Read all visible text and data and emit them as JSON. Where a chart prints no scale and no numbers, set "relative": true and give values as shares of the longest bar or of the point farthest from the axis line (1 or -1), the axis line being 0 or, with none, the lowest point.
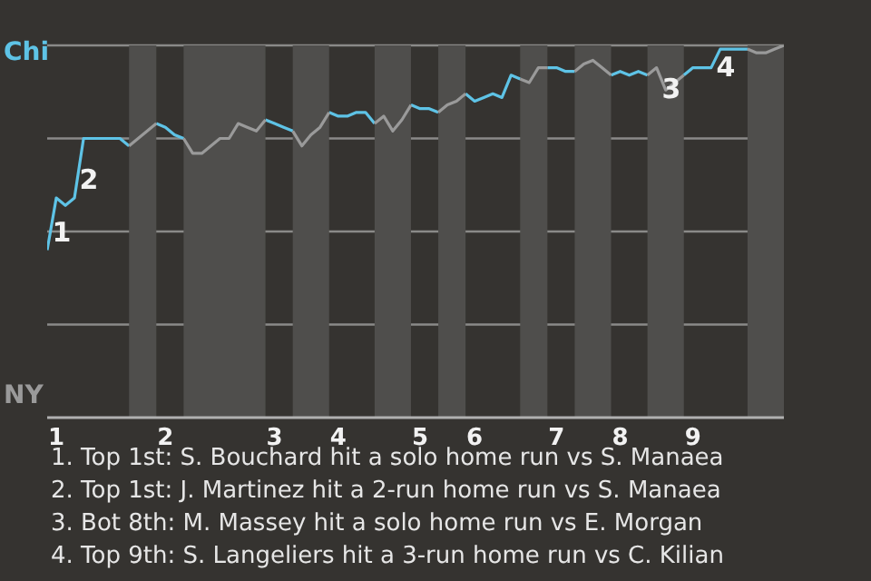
{
  "chart_data": {
    "type": "line",
    "relative": true,
    "categories": [
      null,
      "1",
      null,
      null,
      null,
      null,
      null,
      null,
      null,
      null,
      null,
      null,
      null,
      "2",
      null,
      null,
      null,
      null,
      null,
      null,
      null,
      null,
      null,
      null,
      null,
      "3",
      null,
      null,
      null,
      null,
      null,
      null,
      "4",
      null,
      null,
      null,
      null,
      null,
      null,
      null,
      null,
      "5",
      null,
      null,
      null,
      null,
      null,
      "6",
      null,
      null,
      null,
      null,
      null,
      null,
      null,
      null,
      "7",
      null,
      null,
      null,
      null,
      null,
      null,
      "8",
      null,
      null,
      null,
      null,
      null,
      null,
      null,
      "9",
      null,
      null,
      null,
      null,
      null,
      null,
      null,
      null,
      null,
      null
    ],
    "series": [
      {
        "color": "#5ec3e6",
        "values": [
          0.45,
          0.59,
          0.57,
          0.59,
          0.75,
          0.75,
          0.75,
          0.75,
          0.75,
          0.73,
          null,
          null,
          0.79,
          0.78,
          0.76,
          0.75,
          null,
          null,
          null,
          null,
          null,
          null,
          null,
          null,
          0.8,
          0.79,
          0.78,
          0.77,
          null,
          null,
          null,
          0.82,
          0.81,
          0.81,
          0.82,
          0.82,
          0.79,
          null,
          null,
          null,
          0.84,
          0.83,
          0.83,
          0.82,
          null,
          null,
          0.87,
          0.85,
          0.86,
          0.87,
          0.86,
          0.92,
          0.91,
          null,
          null,
          0.94,
          0.94,
          0.93,
          0.93,
          null,
          null,
          null,
          0.92,
          0.93,
          0.92,
          0.93,
          0.92,
          null,
          null,
          null,
          0.92,
          0.94,
          0.94,
          0.94,
          0.99,
          0.99,
          0.99,
          0.99,
          null,
          null,
          null,
          null
        ]
      },
      {
        "color": "#9a9a9a",
        "values": [
          null,
          null,
          null,
          null,
          null,
          null,
          null,
          null,
          null,
          0.73,
          0.75,
          0.77,
          0.79,
          null,
          null,
          0.75,
          0.71,
          0.71,
          0.73,
          0.75,
          0.75,
          0.79,
          0.78,
          0.77,
          0.8,
          null,
          null,
          0.77,
          0.73,
          0.76,
          0.78,
          0.82,
          null,
          null,
          null,
          null,
          0.79,
          0.81,
          0.77,
          0.8,
          0.84,
          null,
          null,
          0.82,
          0.84,
          0.85,
          0.87,
          null,
          null,
          null,
          null,
          null,
          0.91,
          0.9,
          0.94,
          0.94,
          null,
          null,
          0.93,
          0.95,
          0.96,
          0.94,
          0.92,
          null,
          null,
          null,
          0.92,
          0.94,
          0.88,
          0.9,
          0.92,
          null,
          null,
          null,
          null,
          null,
          null,
          0.99,
          0.98,
          0.98,
          0.99,
          1
        ]
      }
    ],
    "grid": "y",
    "marker": "none",
    "annotations": [
      "Chi",
      "NY",
      "1",
      "2",
      "3",
      "4",
      "1. Top 1st: S. Bouchard hit a solo home run vs S. Manaea",
      "2. Top 1st: J. Martinez hit a 2-run home run vs S. Manaea",
      "3. Bot 8th: M. Massey hit a solo home run vs E. Morgan",
      "4. Top 9th: S. Langeliers hit a 3-run home run vs C. Kilian"
    ]
  }
}
